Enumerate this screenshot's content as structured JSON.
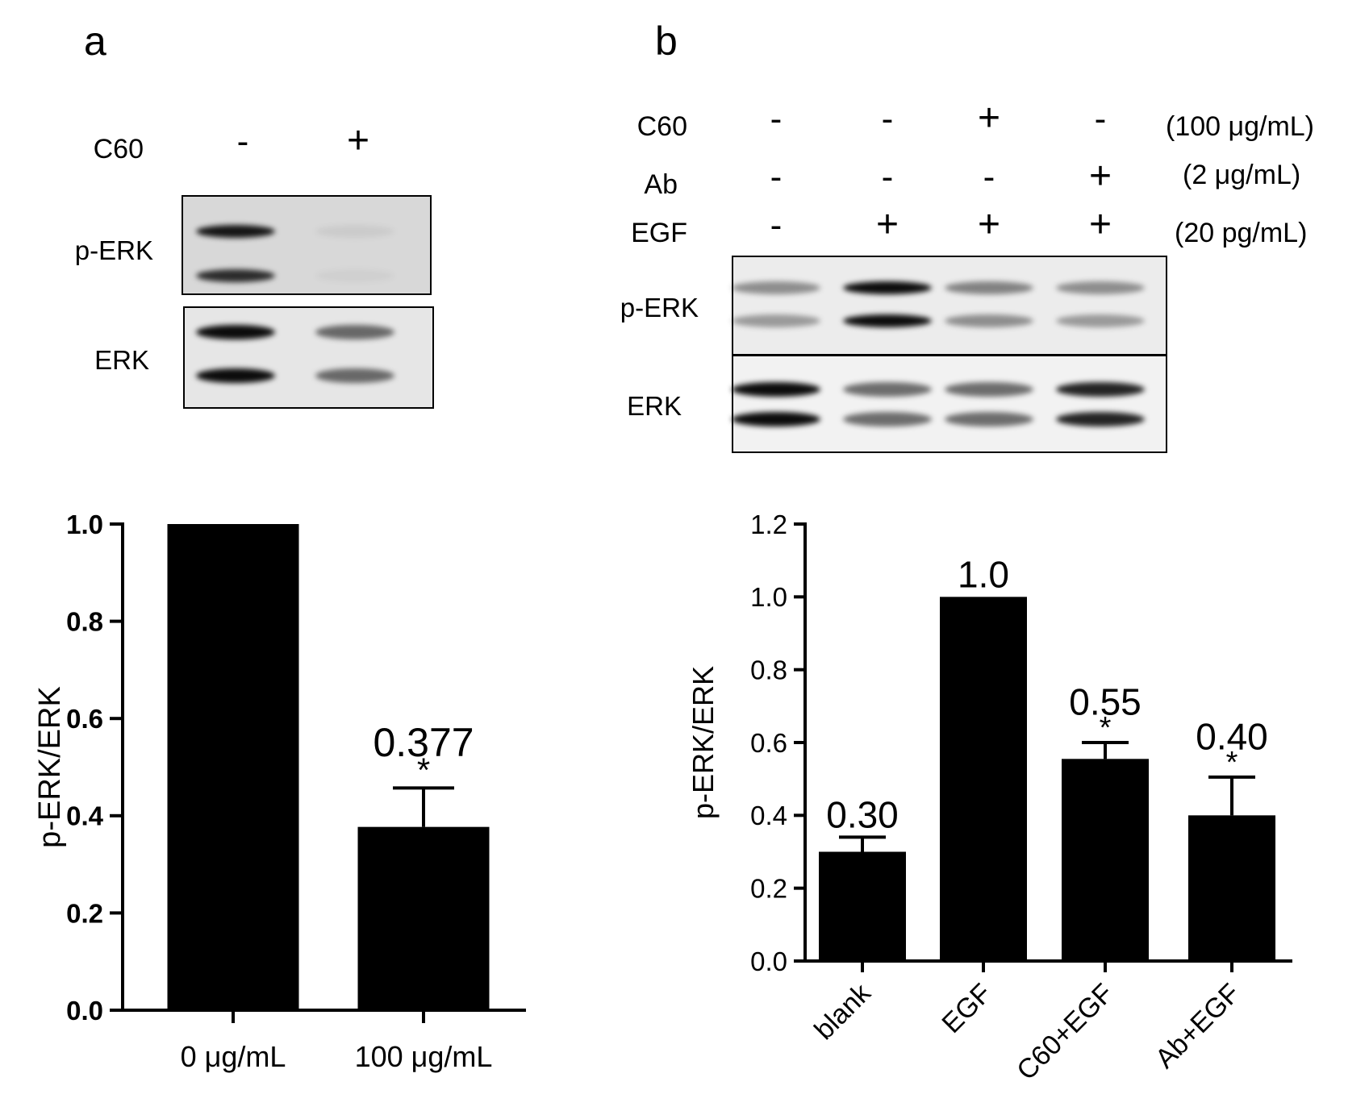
{
  "panel_a": {
    "panel_letter": "a",
    "treatment": {
      "label": "C60",
      "signs": [
        "-",
        "+"
      ]
    },
    "blots": [
      {
        "label": "p-ERK",
        "bands": [
          [
            0.9,
            0.06
          ],
          [
            0.8,
            0.04
          ]
        ]
      },
      {
        "label": "ERK",
        "bands": [
          [
            0.95,
            0.55
          ],
          [
            0.95,
            0.55
          ]
        ]
      }
    ]
  },
  "panel_b": {
    "panel_letter": "b",
    "treatments": [
      {
        "label": "C60",
        "signs": [
          "-",
          "-",
          "+",
          "-"
        ],
        "dose": "(100 μg/mL)"
      },
      {
        "label": "Ab",
        "signs": [
          "-",
          "-",
          "-",
          "+"
        ],
        "dose": "(2 μg/mL)"
      },
      {
        "label": "EGF",
        "signs": [
          "-",
          "+",
          "+",
          "+"
        ],
        "dose": "(20 pg/mL)"
      }
    ],
    "blots": [
      {
        "label": "p-ERK",
        "bands": [
          [
            0.4,
            0.95,
            0.45,
            0.4
          ],
          [
            0.35,
            0.95,
            0.4,
            0.35
          ]
        ]
      },
      {
        "label": "ERK",
        "bands": [
          [
            0.95,
            0.55,
            0.55,
            0.85
          ],
          [
            0.95,
            0.55,
            0.55,
            0.85
          ]
        ]
      }
    ]
  },
  "chart_data": [
    {
      "type": "bar",
      "categories": [
        "0 μg/mL",
        "100 μg/mL"
      ],
      "values": [
        1.0,
        0.377
      ],
      "errors": [
        0,
        0.08
      ],
      "value_labels": [
        "",
        "0.377"
      ],
      "significance": [
        "",
        "*"
      ],
      "ylabel": "p-ERK/ERK",
      "ylim": [
        0,
        1.0
      ],
      "yticks": [
        "0.0",
        "0.2",
        "0.4",
        "0.6",
        "0.8",
        "1.0"
      ],
      "bar_color": "#000000"
    },
    {
      "type": "bar",
      "categories": [
        "blank",
        "EGF",
        "C60+EGF",
        "Ab+EGF"
      ],
      "values": [
        0.3,
        1.0,
        0.555,
        0.4
      ],
      "errors": [
        0.04,
        0,
        0.045,
        0.105
      ],
      "value_labels": [
        "0.30",
        "1.0",
        "0.55",
        "0.40"
      ],
      "significance": [
        "",
        "",
        "*",
        "*"
      ],
      "ylabel": "p-ERK/ERK",
      "ylim": [
        0,
        1.2
      ],
      "yticks": [
        "0.0",
        "0.2",
        "0.4",
        "0.6",
        "0.8",
        "1.0",
        "1.2"
      ],
      "bar_color": "#000000"
    }
  ]
}
